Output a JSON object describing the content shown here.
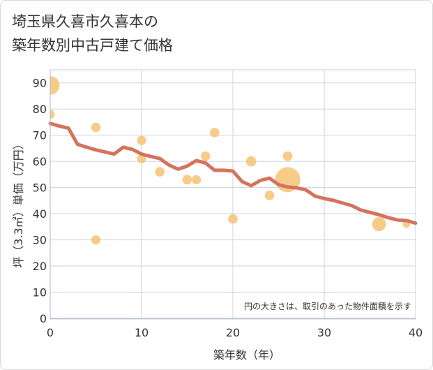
{
  "chart_data": {
    "type": "scatter",
    "title_line1": "埼玉県久喜市久喜本の",
    "title_line2": "築年数別中古戸建て価格",
    "xlabel": "築年数（年）",
    "ylabel": "坪（3.3㎡）単価（万円）",
    "xlim": [
      0,
      40
    ],
    "ylim": [
      0,
      95
    ],
    "xticks": [
      0,
      10,
      20,
      30,
      40
    ],
    "yticks": [
      0,
      10,
      20,
      30,
      40,
      50,
      60,
      70,
      80,
      90
    ],
    "grid": true,
    "annotation": "円の大きさは、取引のあった物件面積を示す",
    "colors": {
      "bubble": "#f5c16e",
      "trend": "#d4735e",
      "grid": "#c9d3e0",
      "axis": "#aab7c9"
    },
    "bubbles": [
      {
        "x": 0,
        "y": 89,
        "size": 5
      },
      {
        "x": 0,
        "y": 78,
        "size": 1.2
      },
      {
        "x": 5,
        "y": 73,
        "size": 1.3
      },
      {
        "x": 5,
        "y": 30,
        "size": 1.2
      },
      {
        "x": 10,
        "y": 68,
        "size": 1.2
      },
      {
        "x": 10,
        "y": 61,
        "size": 1.2
      },
      {
        "x": 12,
        "y": 56,
        "size": 1.3
      },
      {
        "x": 15,
        "y": 53,
        "size": 1.3
      },
      {
        "x": 16,
        "y": 53,
        "size": 1.2
      },
      {
        "x": 17,
        "y": 62,
        "size": 1.3
      },
      {
        "x": 18,
        "y": 71,
        "size": 1.3
      },
      {
        "x": 20,
        "y": 38,
        "size": 1.3
      },
      {
        "x": 22,
        "y": 60,
        "size": 1.5
      },
      {
        "x": 24,
        "y": 47,
        "size": 1.3
      },
      {
        "x": 26,
        "y": 53,
        "size": 9
      },
      {
        "x": 26,
        "y": 62,
        "size": 1.3
      },
      {
        "x": 36,
        "y": 36,
        "size": 2.8
      },
      {
        "x": 39,
        "y": 36,
        "size": 0.8
      }
    ],
    "trend": {
      "x": [
        0,
        1,
        2,
        3,
        4,
        5,
        6,
        7,
        8,
        9,
        10,
        11,
        12,
        13,
        14,
        15,
        16,
        17,
        18,
        19,
        20,
        21,
        22,
        23,
        24,
        25,
        26,
        27,
        28,
        29,
        30,
        31,
        32,
        33,
        34,
        35,
        36,
        37,
        38,
        39,
        40
      ],
      "y": [
        74.5,
        73.5,
        72.7,
        66.5,
        65.4,
        64.4,
        63.6,
        62.8,
        65.4,
        64.6,
        62.8,
        61.9,
        61.1,
        58.6,
        57.0,
        58.2,
        60.3,
        59.4,
        56.6,
        56.6,
        56.3,
        52.3,
        50.7,
        52.7,
        53.6,
        51.1,
        50.2,
        49.9,
        49.1,
        46.7,
        45.8,
        45.1,
        44.1,
        43.1,
        41.4,
        40.5,
        39.6,
        38.5,
        37.6,
        37.4,
        36.4
      ]
    }
  }
}
